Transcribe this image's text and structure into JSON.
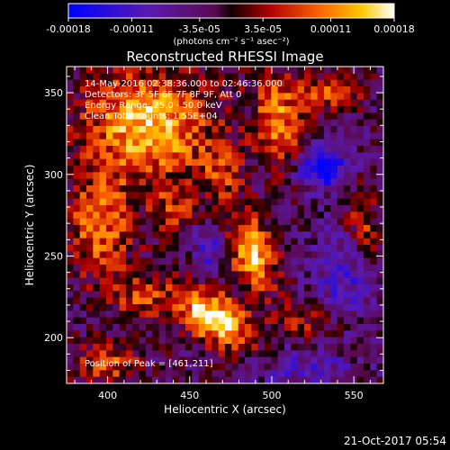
{
  "chart_data": {
    "type": "heatmap",
    "title": "Reconstructed RHESSI Image",
    "xlabel": "Heliocentric X (arcsec)",
    "ylabel": "Heliocentric Y (arcsec)",
    "xlim": [
      375,
      568
    ],
    "ylim": [
      172,
      366
    ],
    "x_ticks": [
      400,
      450,
      500,
      550
    ],
    "y_ticks": [
      200,
      250,
      300,
      350
    ],
    "colorbar": {
      "colormap": "RHESSI-style black-blue-purple-red-orange-yellow-white",
      "range": [
        -0.00018,
        0.00018
      ],
      "tick_values": [
        -0.00018,
        -0.00011,
        -3.5e-05,
        3.5e-05,
        0.00011,
        0.00018
      ],
      "tick_labels": [
        "-0.00018",
        "-0.00011",
        "-3.5e-05",
        "3.5e-05",
        "0.00011",
        "0.00018"
      ],
      "unit_label": "(photons cm⁻² s⁻¹ asec⁻²)"
    },
    "annotations": [
      "14-May-2016 02:38:36.000 to 02:46:36.000",
      "Detectors: 3F 5F 6F 7F 8F 9F, Att 0",
      "Energy Range: 25.0 - 50.0 keV",
      "Clean     Total counts: 1.55E+04"
    ],
    "peak_label": "Position of Peak = [461,211]",
    "peak": [
      461,
      211
    ],
    "blobs": [
      {
        "x": 465,
        "y": 212,
        "sx": 18,
        "sy": 10,
        "theta": -0.6,
        "amp": 1.15
      },
      {
        "x": 488,
        "y": 252,
        "sx": 10,
        "sy": 16,
        "theta": 0.3,
        "amp": 1.0
      },
      {
        "x": 425,
        "y": 330,
        "sx": 28,
        "sy": 24,
        "theta": 0.0,
        "amp": 0.95
      },
      {
        "x": 395,
        "y": 268,
        "sx": 14,
        "sy": 22,
        "theta": 0.0,
        "amp": 0.7
      },
      {
        "x": 505,
        "y": 330,
        "sx": 10,
        "sy": 22,
        "theta": 0.2,
        "amp": 0.75
      },
      {
        "x": 535,
        "y": 350,
        "sx": 14,
        "sy": 8,
        "theta": 0.0,
        "amp": 0.6
      },
      {
        "x": 555,
        "y": 268,
        "sx": 8,
        "sy": 18,
        "theta": 0.0,
        "amp": 0.55
      },
      {
        "x": 420,
        "y": 225,
        "sx": 12,
        "sy": 10,
        "theta": 0.0,
        "amp": 0.5
      },
      {
        "x": 400,
        "y": 185,
        "sx": 14,
        "sy": 10,
        "theta": 0.0,
        "amp": 0.55
      },
      {
        "x": 520,
        "y": 210,
        "sx": 16,
        "sy": 10,
        "theta": 0.0,
        "amp": 0.35
      },
      {
        "x": 440,
        "y": 278,
        "sx": 10,
        "sy": 10,
        "theta": 0.0,
        "amp": 0.45
      },
      {
        "x": 470,
        "y": 300,
        "sx": 10,
        "sy": 12,
        "theta": 0.0,
        "amp": 0.45
      },
      {
        "x": 530,
        "y": 305,
        "sx": 12,
        "sy": 10,
        "theta": 0.0,
        "amp": -0.9
      },
      {
        "x": 545,
        "y": 240,
        "sx": 14,
        "sy": 20,
        "theta": 0.0,
        "amp": -0.5
      },
      {
        "x": 462,
        "y": 255,
        "sx": 8,
        "sy": 12,
        "theta": 0.0,
        "amp": -0.45
      },
      {
        "x": 520,
        "y": 182,
        "sx": 22,
        "sy": 10,
        "theta": 0.0,
        "amp": -0.35
      }
    ],
    "background_level": -0.15
  },
  "timestamp": "21-Oct-2017 05:54"
}
